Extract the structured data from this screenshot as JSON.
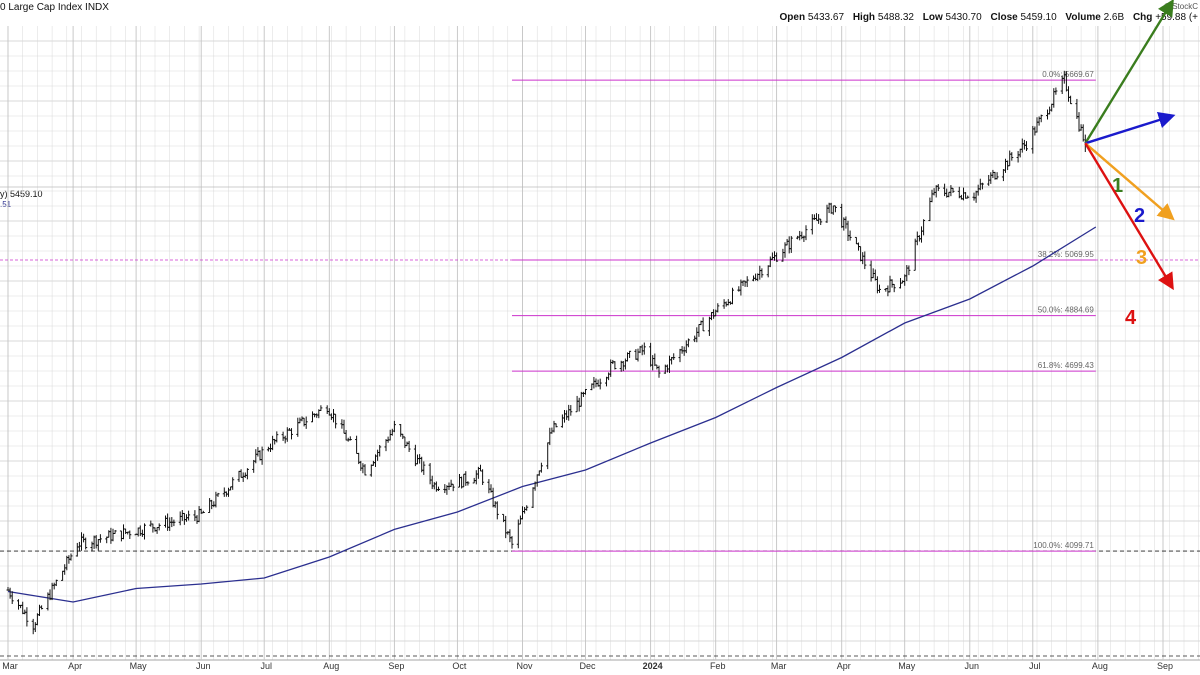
{
  "header": {
    "title": "0 Large Cap Index  INDX",
    "source": "© StockC",
    "ohlc": {
      "open_label": "Open",
      "open": "5433.67",
      "high_label": "High",
      "high": "5488.32",
      "low_label": "Low",
      "low": "5430.70",
      "close_label": "Close",
      "close": "5459.10",
      "volume_label": "Volume",
      "volume": "2.6B",
      "chg_label": "Chg",
      "chg": "+59.88 (+"
    }
  },
  "legend": {
    "line1": "y) 5459.10",
    "line2": ".51"
  },
  "colors": {
    "price": "#111111",
    "ma": "#2b2f8f",
    "fib": "#cc33cc",
    "grid": "#d9d9d9",
    "arrow1": "#3a7d1e",
    "arrow2": "#1a1acc",
    "arrow3": "#f0a020",
    "arrow4": "#dd1111"
  },
  "chart_data": {
    "type": "line",
    "x_axis_labels": [
      "Mar",
      "Apr",
      "May",
      "Jun",
      "Jul",
      "Aug",
      "Sep",
      "Oct",
      "Nov",
      "Dec",
      "2024",
      "Feb",
      "Mar",
      "Apr",
      "May",
      "Jun",
      "Jul",
      "Aug",
      "Sep"
    ],
    "ylim": [
      3750,
      5850
    ],
    "series": [
      {
        "style": "ohlc-bars",
        "x": [
          "2023-03-01",
          "2023-03-13",
          "2023-04-03",
          "2023-05-01",
          "2023-06-01",
          "2023-07-03",
          "2023-07-31",
          "2023-08-18",
          "2023-09-01",
          "2023-09-20",
          "2023-10-02",
          "2023-10-12",
          "2023-10-27",
          "2023-11-15",
          "2023-12-14",
          "2023-12-29",
          "2024-01-05",
          "2024-02-01",
          "2024-03-08",
          "2024-03-28",
          "2024-04-19",
          "2024-05-01",
          "2024-05-15",
          "2024-06-03",
          "2024-06-28",
          "2024-07-16",
          "2024-07-26"
        ],
        "values": [
          3970,
          3855,
          4124,
          4170,
          4220,
          4450,
          4585,
          4370,
          4510,
          4320,
          4330,
          4360,
          4120,
          4500,
          4720,
          4770,
          4690,
          4900,
          5130,
          5250,
          4970,
          5010,
          5300,
          5290,
          5460,
          5670,
          5459
        ]
      },
      {
        "style": "moving-average",
        "x": [
          "2023-03-01",
          "2023-04-01",
          "2023-05-01",
          "2023-06-01",
          "2023-07-01",
          "2023-08-01",
          "2023-09-01",
          "2023-10-01",
          "2023-11-01",
          "2023-12-01",
          "2024-01-01",
          "2024-02-01",
          "2024-03-01",
          "2024-04-01",
          "2024-05-01",
          "2024-06-01",
          "2024-07-01",
          "2024-07-31"
        ],
        "values": [
          3965,
          3930,
          3975,
          3990,
          4010,
          4080,
          4172,
          4230,
          4315,
          4370,
          4460,
          4545,
          4645,
          4745,
          4860,
          4940,
          5050,
          5180
        ]
      }
    ],
    "fibonacci": [
      {
        "level": "0.0%",
        "value": 5669.67,
        "label": "0.0%: 5669.67"
      },
      {
        "level": "38.2%",
        "value": 5069.95,
        "label": "38.2%: 5069.95"
      },
      {
        "level": "50.0%",
        "value": 4884.69,
        "label": "50.0%: 4884.69"
      },
      {
        "level": "61.8%",
        "value": 4699.43,
        "label": "61.8%: 4699.43"
      },
      {
        "level": "100.0%",
        "value": 4099.71,
        "label": "100.0%: 4099.71"
      }
    ],
    "scenarios": [
      {
        "label": "1",
        "target": 5930
      },
      {
        "label": "2",
        "target": 5550
      },
      {
        "label": "3",
        "target": 5210
      },
      {
        "label": "4",
        "target": 4980
      }
    ]
  }
}
